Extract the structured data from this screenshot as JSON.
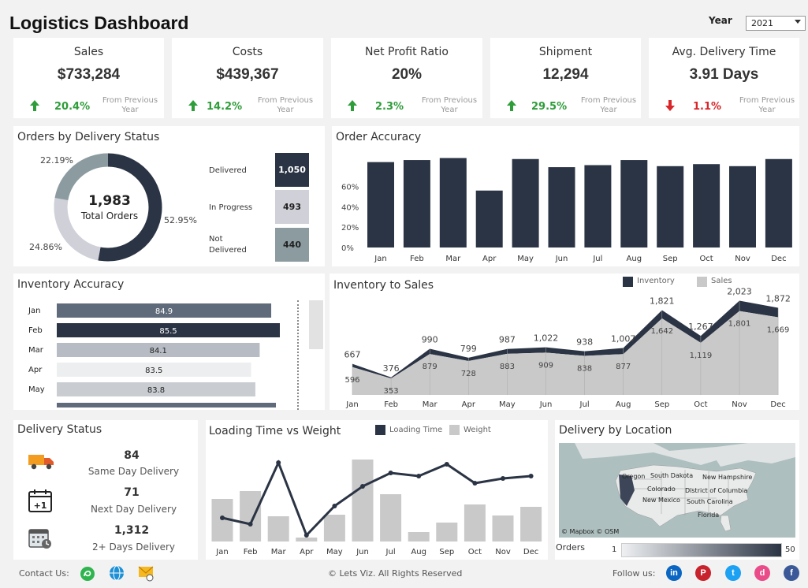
{
  "header": {
    "title": "Logistics Dashboard",
    "year_label": "Year",
    "year_value": "2021"
  },
  "kpis": [
    {
      "name": "Sales",
      "value": "$733,284",
      "change": "20.4%",
      "direction": "up",
      "note": "From Previous Year"
    },
    {
      "name": "Costs",
      "value": "$439,367",
      "change": "14.2%",
      "direction": "up",
      "note": "From Previous Year"
    },
    {
      "name": "Net Profit Ratio",
      "value": "20%",
      "change": "2.3%",
      "direction": "up",
      "note": "From Previous Year"
    },
    {
      "name": "Shipment",
      "value": "12,294",
      "change": "29.5%",
      "direction": "up",
      "note": "From Previous Year"
    },
    {
      "name": "Avg. Delivery Time",
      "value": "3.91 Days",
      "change": "1.1%",
      "direction": "down",
      "note": "From Previous Year"
    }
  ],
  "colors": {
    "dark": "#2b3444",
    "gray": "#c9c9c9",
    "mid": "#8b9ba0",
    "light": "#cfd0d8",
    "green": "#2e9d3a",
    "red": "#d9262a"
  },
  "orders_status": {
    "title": "Orders by Delivery Status",
    "total": "1,983",
    "total_label": "Total Orders",
    "segments": [
      {
        "name": "Delivered",
        "pct": "52.95%",
        "value": 1050,
        "value_label": "1,050",
        "color": "#2b3444"
      },
      {
        "name": "In Progress",
        "pct": "24.86%",
        "value": 493,
        "value_label": "493",
        "color": "#cfd0d8"
      },
      {
        "name": "Not Delivered",
        "pct": "22.19%",
        "value": 440,
        "value_label": "440",
        "color": "#8b9ba0"
      }
    ]
  },
  "chart_data": [
    {
      "id": "order-accuracy",
      "type": "bar",
      "title": "Order Accuracy",
      "categories": [
        "Jan",
        "Feb",
        "Mar",
        "Apr",
        "May",
        "Jun",
        "Jul",
        "Aug",
        "Sep",
        "Oct",
        "Nov",
        "Dec"
      ],
      "values": [
        84,
        86,
        88,
        56,
        87,
        79,
        81,
        86,
        80,
        82,
        80,
        87
      ],
      "ylim": [
        0,
        100
      ],
      "yticks": [
        "0%",
        "20%",
        "40%",
        "60%"
      ],
      "ytick_values": [
        0,
        20,
        40,
        60
      ]
    },
    {
      "id": "inventory-accuracy",
      "type": "bar",
      "orientation": "horizontal",
      "title": "Inventory Accuracy",
      "categories": [
        "Jan",
        "Feb",
        "Mar",
        "Apr",
        "May"
      ],
      "values": [
        84.9,
        85.5,
        84.1,
        83.5,
        83.8
      ],
      "labels": [
        "84.9",
        "85.5",
        "84.1",
        "83.5",
        "83.8"
      ],
      "highlight": "Feb"
    },
    {
      "id": "inventory-sales",
      "type": "area",
      "title": "Inventory to Sales",
      "categories": [
        "Jan",
        "Feb",
        "Mar",
        "Apr",
        "May",
        "Jun",
        "Jul",
        "Aug",
        "Sep",
        "Oct",
        "Nov",
        "Dec"
      ],
      "series": [
        {
          "name": "Inventory",
          "values": [
            667,
            376,
            990,
            799,
            987,
            1022,
            938,
            1007,
            1821,
            1267,
            2023,
            1872
          ],
          "labels": [
            "667",
            "376",
            "990",
            "799",
            "987",
            "1,022",
            "938",
            "1,007",
            "1,821",
            "1,267",
            "2,023",
            "1,872"
          ]
        },
        {
          "name": "Sales",
          "values": [
            596,
            353,
            879,
            728,
            883,
            909,
            838,
            877,
            1642,
            1119,
            1801,
            1669
          ],
          "labels": [
            "596",
            "353",
            "879",
            "728",
            "883",
            "909",
            "838",
            "877",
            "1,642",
            "1,119",
            "1,801",
            "1,669"
          ]
        }
      ]
    },
    {
      "id": "loading-weight",
      "type": "bar",
      "title": "Loading Time vs Weight",
      "categories": [
        "Jan",
        "Feb",
        "Mar",
        "Apr",
        "May",
        "Jun",
        "Jul",
        "Aug",
        "Sep",
        "Oct",
        "Nov",
        "Dec"
      ],
      "series": [
        {
          "name": "Loading Time",
          "kind": "line",
          "values": [
            30,
            22,
            100,
            8,
            45,
            70,
            87,
            83,
            98,
            74,
            80,
            83
          ]
        },
        {
          "name": "Weight",
          "kind": "bar",
          "values": [
            54,
            64,
            32,
            5,
            34,
            104,
            60,
            12,
            24,
            47,
            33,
            44
          ]
        }
      ]
    }
  ],
  "delivery_status": {
    "title": "Delivery Status",
    "items": [
      {
        "value": "84",
        "label": "Same Day Delivery",
        "icon": "truck-icon"
      },
      {
        "value": "71",
        "label": "Next Day Delivery",
        "icon": "calendar-plus-icon"
      },
      {
        "value": "1,312",
        "label": "2+ Days Delivery",
        "icon": "calendar-clock-icon"
      }
    ]
  },
  "location": {
    "title": "Delivery by Location",
    "states": [
      "Oregon",
      "South Dakota",
      "New Hampshire",
      "Colorado",
      "District of Columbia",
      "New Mexico",
      "South Carolina",
      "Florida"
    ],
    "attribution": "© Mapbox  © OSM",
    "legend_label": "Orders",
    "legend_min": "1",
    "legend_max": "50"
  },
  "footer": {
    "contact_label": "Contact Us:",
    "copyright": "© Lets Viz. All Rights Reserved",
    "follow_label": "Follow us:",
    "social": [
      "in",
      "P",
      "t",
      "d",
      "f"
    ]
  }
}
